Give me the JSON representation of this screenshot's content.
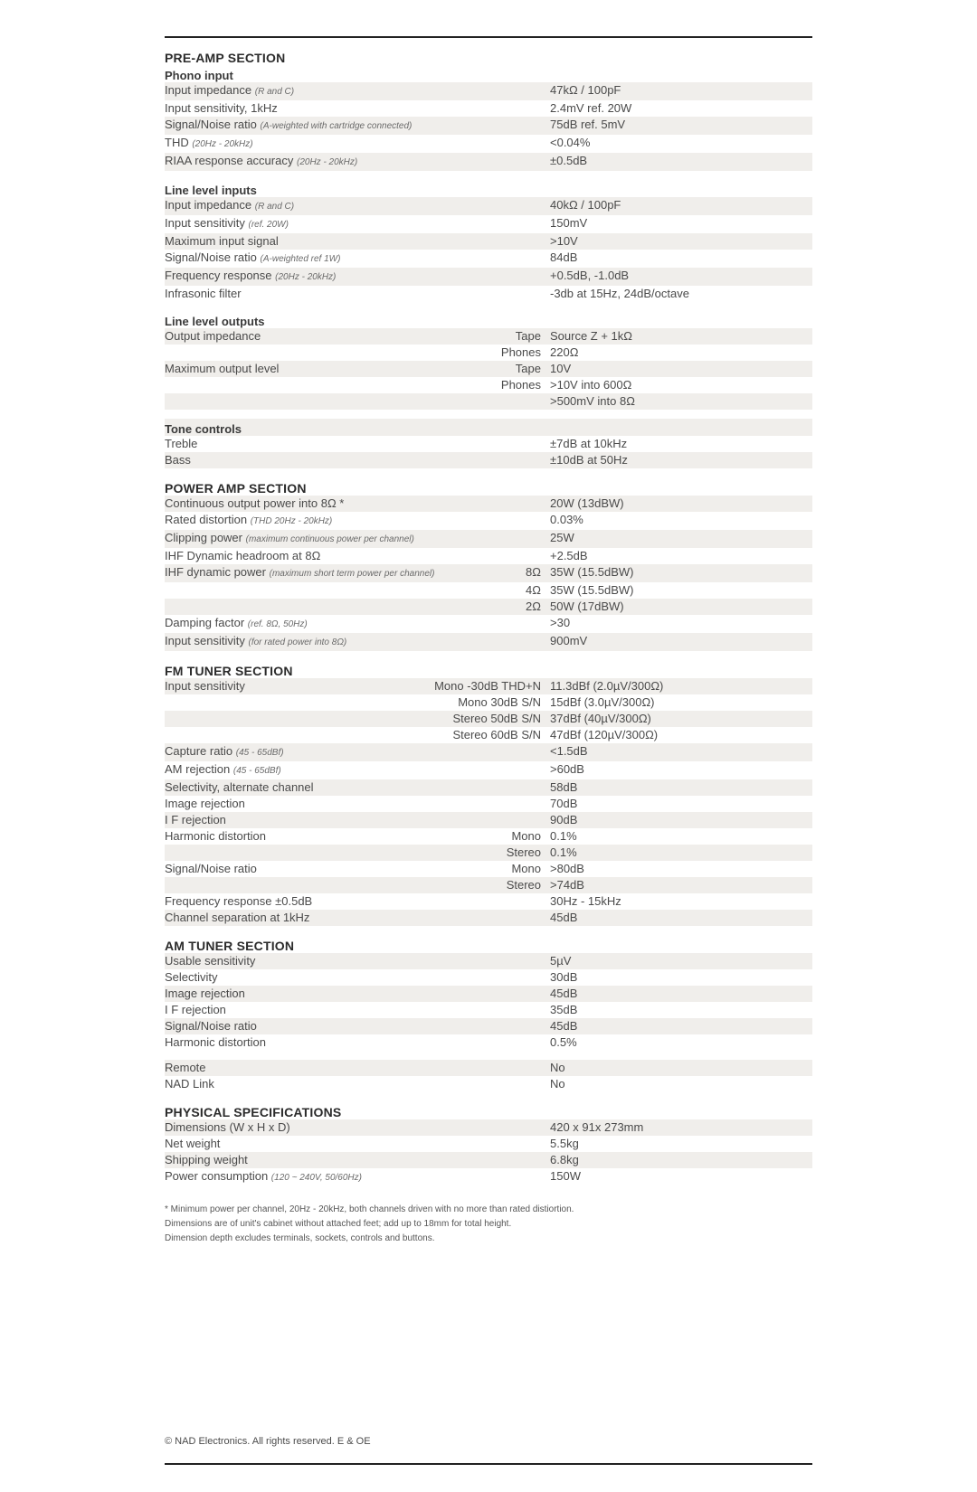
{
  "colors": {
    "text": "#4a4a4a",
    "heading": "#2b2b2b",
    "alt_row_bg": "#f0eeeb",
    "rule": "#222222",
    "notes": "#6a6a6a"
  },
  "typography": {
    "body_fontsize_pt": 10,
    "heading_fontsize_pt": 11,
    "footnote_fontsize_pt": 7.5
  },
  "page_aspect": "1080x1525",
  "sections": {
    "preamp": {
      "title": "PRE-AMP SECTION",
      "phono": {
        "title": "Phono input",
        "rows": [
          {
            "label": "Input impedance",
            "note": "(R and C)",
            "value": "47kΩ / 100pF"
          },
          {
            "label": "Input sensitivity, 1kHz",
            "value": "2.4mV ref. 20W"
          },
          {
            "label": "Signal/Noise ratio",
            "note": "(A-weighted with cartridge connected)",
            "value": "75dB ref. 5mV"
          },
          {
            "label": "THD",
            "note": "(20Hz - 20kHz)",
            "value": "<0.04%"
          },
          {
            "label": "RIAA response accuracy",
            "note": "(20Hz - 20kHz)",
            "value": "±0.5dB"
          }
        ]
      },
      "line_in": {
        "title": "Line level inputs",
        "rows": [
          {
            "label": "Input impedance",
            "note": "(R and C)",
            "value": "40kΩ / 100pF"
          },
          {
            "label": "Input sensitivity",
            "note": "(ref. 20W)",
            "value": "150mV"
          },
          {
            "label": "Maximum input signal",
            "value": ">10V"
          },
          {
            "label": "Signal/Noise ratio",
            "note": "(A-weighted ref 1W)",
            "value": "84dB"
          },
          {
            "label": "Frequency response",
            "note": "(20Hz - 20kHz)",
            "value": "+0.5dB, -1.0dB"
          },
          {
            "label": "Infrasonic filter",
            "value": "-3db at 15Hz, 24dB/octave"
          }
        ]
      },
      "line_out": {
        "title": "Line level outputs",
        "rows": [
          {
            "label": "Output impedance",
            "sub": "Tape",
            "value": "Source Z + 1kΩ"
          },
          {
            "label": "",
            "sub": "Phones",
            "value": "220Ω"
          },
          {
            "label": "Maximum output level",
            "sub": "Tape",
            "value": "10V"
          },
          {
            "label": "",
            "sub": "Phones",
            "value": ">10V into 600Ω"
          },
          {
            "label": "",
            "sub": "",
            "value": ">500mV into 8Ω"
          }
        ]
      },
      "tone": {
        "title": "Tone controls",
        "rows": [
          {
            "label": "Treble",
            "value": "±7dB at 10kHz"
          },
          {
            "label": "Bass",
            "value": "±10dB at 50Hz"
          }
        ]
      }
    },
    "power": {
      "title": "POWER AMP SECTION",
      "rows": [
        {
          "label": "Continuous output power into 8Ω *",
          "value": "20W (13dBW)"
        },
        {
          "label": "Rated distortion",
          "note": "(THD 20Hz - 20kHz)",
          "value": "0.03%"
        },
        {
          "label": "Clipping power",
          "note": "(maximum continuous power per channel)",
          "value": "25W"
        },
        {
          "label": "IHF Dynamic headroom at 8Ω",
          "value": "+2.5dB"
        },
        {
          "label": "IHF dynamic power",
          "note": "(maximum short term power per channel)",
          "sub": "8Ω",
          "value": "35W (15.5dBW)"
        },
        {
          "label": "",
          "sub": "4Ω",
          "value": "35W (15.5dBW)"
        },
        {
          "label": "",
          "sub": "2Ω",
          "value": "50W (17dBW)"
        },
        {
          "label": "Damping factor",
          "note": "(ref. 8Ω, 50Hz)",
          "value": ">30"
        },
        {
          "label": "Input sensitivity",
          "note": "(for rated power into 8Ω)",
          "value": "900mV"
        }
      ]
    },
    "fm": {
      "title": "FM TUNER SECTION",
      "rows": [
        {
          "label": "Input sensitivity",
          "sub": "Mono -30dB THD+N",
          "value": "11.3dBf (2.0µV/300Ω)"
        },
        {
          "label": "",
          "sub": "Mono 30dB S/N",
          "value": "15dBf (3.0µV/300Ω)"
        },
        {
          "label": "",
          "sub": "Stereo 50dB S/N",
          "value": "37dBf (40µV/300Ω)"
        },
        {
          "label": "",
          "sub": "Stereo 60dB S/N",
          "value": "47dBf (120µV/300Ω)"
        },
        {
          "label": "Capture ratio",
          "note": "(45 - 65dBf)",
          "value": "<1.5dB"
        },
        {
          "label": "AM rejection",
          "note": "(45 - 65dBf)",
          "value": ">60dB"
        },
        {
          "label": "Selectivity, alternate channel",
          "value": "58dB"
        },
        {
          "label": "Image rejection",
          "value": "70dB"
        },
        {
          "label": "I F rejection",
          "value": "90dB"
        },
        {
          "label": "Harmonic distortion",
          "sub": "Mono",
          "value": "0.1%"
        },
        {
          "label": "",
          "sub": "Stereo",
          "value": "0.1%"
        },
        {
          "label": "Signal/Noise ratio",
          "sub": "Mono",
          "value": ">80dB"
        },
        {
          "label": "",
          "sub": "Stereo",
          "value": ">74dB"
        },
        {
          "label": "Frequency response ±0.5dB",
          "value": "30Hz - 15kHz"
        },
        {
          "label": "Channel separation at 1kHz",
          "value": "45dB"
        }
      ]
    },
    "am": {
      "title": "AM TUNER SECTION",
      "rows": [
        {
          "label": "Usable sensitivity",
          "value": "5µV"
        },
        {
          "label": "Selectivity",
          "value": "30dB"
        },
        {
          "label": "Image rejection",
          "value": "45dB"
        },
        {
          "label": "I F rejection",
          "value": "35dB"
        },
        {
          "label": "Signal/Noise ratio",
          "value": "45dB"
        },
        {
          "label": "Harmonic distortion",
          "value": "0.5%"
        }
      ],
      "extra": [
        {
          "label": "Remote",
          "value": "No"
        },
        {
          "label": "NAD Link",
          "value": "No"
        }
      ]
    },
    "physical": {
      "title": "PHYSICAL SPECIFICATIONS",
      "rows": [
        {
          "label": "Dimensions (W x H x D)",
          "value": "420 x 91x 273mm"
        },
        {
          "label": "Net weight",
          "value": "5.5kg"
        },
        {
          "label": "Shipping weight",
          "value": "6.8kg"
        },
        {
          "label": "Power consumption",
          "note": "(120 ~ 240V, 50/60Hz)",
          "value": "150W"
        }
      ]
    }
  },
  "footnotes": [
    "* Minimum power per channel, 20Hz - 20kHz, both channels driven with no more than rated distiortion.",
    "Dimensions are of unit's cabinet without attached feet; add up to 18mm for total height.",
    "Dimension depth excludes terminals, sockets, controls and buttons."
  ],
  "copyright": "© NAD Electronics. All rights reserved. E & OE"
}
